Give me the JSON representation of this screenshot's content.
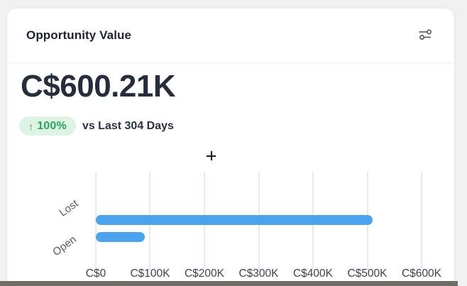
{
  "card": {
    "title": "Opportunity Value",
    "actions": {
      "filter_icon": "sliders-icon"
    }
  },
  "metric": {
    "value": "C$600.21K",
    "badge": {
      "arrow": "↑",
      "percent": "100%"
    },
    "comparison": "vs Last 304 Days"
  },
  "chart_data": {
    "type": "bar",
    "orientation": "horizontal",
    "title": "",
    "categories": [
      "Lost",
      "Open"
    ],
    "values": [
      510000,
      90000
    ],
    "value_unit": "CAD",
    "xlim": [
      0,
      600000
    ],
    "x_tick_labels": [
      "C$0",
      "C$100K",
      "C$200K",
      "C$300K",
      "C$400K",
      "C$500K",
      "C$600K"
    ],
    "grid": "vertical",
    "legend": "none",
    "bar_color": "#4aa3eb"
  },
  "colors": {
    "badge_bg": "#def3e3",
    "badge_text": "#2aa65a",
    "bar_blue": "#4aa3eb",
    "value_text": "#272d3d",
    "bottom_strip": "#6e6e66"
  }
}
